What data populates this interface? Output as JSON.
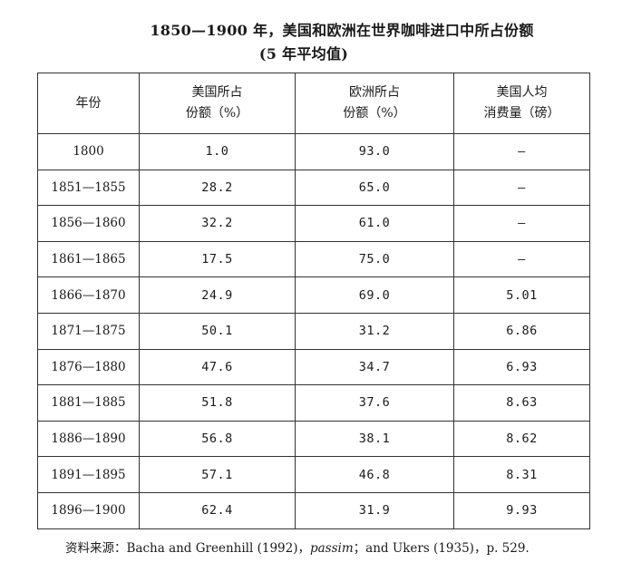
{
  "title": {
    "line1": "1850—1900 年，美国和欧洲在世界咖啡进口中所占份额",
    "line2": "(5 年平均值)"
  },
  "table": {
    "headers": {
      "year": "年份",
      "us_line1": "美国所占",
      "us_line2": "份额（%）",
      "eu_line1": "欧洲所占",
      "eu_line2": "份额（%）",
      "pc_line1": "美国人均",
      "pc_line2": "消费量（磅）"
    },
    "rows": [
      {
        "year": "1800",
        "us": "1.0",
        "eu": "93.0",
        "pc": "—"
      },
      {
        "year": "1851—1855",
        "us": "28.2",
        "eu": "65.0",
        "pc": "—"
      },
      {
        "year": "1856—1860",
        "us": "32.2",
        "eu": "61.0",
        "pc": "—"
      },
      {
        "year": "1861—1865",
        "us": "17.5",
        "eu": "75.0",
        "pc": "—"
      },
      {
        "year": "1866—1870",
        "us": "24.9",
        "eu": "69.0",
        "pc": "5.01"
      },
      {
        "year": "1871—1875",
        "us": "50.1",
        "eu": "31.2",
        "pc": "6.86"
      },
      {
        "year": "1876—1880",
        "us": "47.6",
        "eu": "34.7",
        "pc": "6.93"
      },
      {
        "year": "1881—1885",
        "us": "51.8",
        "eu": "37.6",
        "pc": "8.63"
      },
      {
        "year": "1886—1890",
        "us": "56.8",
        "eu": "38.1",
        "pc": "8.62"
      },
      {
        "year": "1891—1895",
        "us": "57.1",
        "eu": "46.8",
        "pc": "8.31"
      },
      {
        "year": "1896—1900",
        "us": "62.4",
        "eu": "31.9",
        "pc": "9.93"
      }
    ]
  },
  "source": {
    "prefix": "资料来源：Bacha and Greenhill (1992)，",
    "italic": "passim",
    "suffix": "；and Ukers (1935)，p. 529."
  }
}
